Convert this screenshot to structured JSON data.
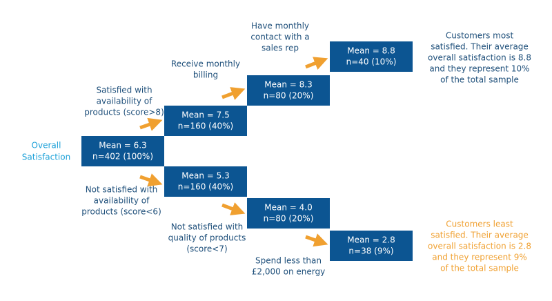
{
  "root_label": [
    "Overall",
    "Satisfaction"
  ],
  "nodes": [
    {
      "lines": [
        "Mean = 6.3",
        "n=402 (100%)"
      ]
    },
    {
      "lines": [
        "Mean = 7.5",
        "n=160 (40%)"
      ]
    },
    {
      "lines": [
        "Mean = 8.3",
        "n=80 (20%)"
      ]
    },
    {
      "lines": [
        "Mean = 8.8",
        "n=40 (10%)"
      ]
    },
    {
      "lines": [
        "Mean = 5.3",
        "n=160 (40%)"
      ]
    },
    {
      "lines": [
        "Mean = 4.0",
        "n=80 (20%)"
      ]
    },
    {
      "lines": [
        "Mean = 2.8",
        "n=38 (9%)"
      ]
    }
  ],
  "edge_labels": [
    {
      "lines": [
        "Satisfied with",
        "availability of",
        "products (score>8)"
      ]
    },
    {
      "lines": [
        "Receive monthly",
        "billing"
      ]
    },
    {
      "lines": [
        "Have monthly",
        "contact with a",
        "sales rep"
      ]
    },
    {
      "lines": [
        "Not satisfied with",
        "availability of",
        "products (score<6)"
      ]
    },
    {
      "lines": [
        "Not satisfied with",
        "quality of products",
        "(score<7)"
      ]
    },
    {
      "lines": [
        "Spend less than",
        "£2,000 on energy"
      ]
    }
  ],
  "callouts": [
    {
      "lines": [
        "Customers most",
        "satisfied. Their average",
        "overall satisfaction is 8.8",
        "and they represent 10%",
        "of the total sample"
      ]
    },
    {
      "lines": [
        "Customers least",
        "satisfied. Their average",
        "overall satisfaction is 2.8",
        "and they represent 9%",
        "of the total sample"
      ]
    }
  ]
}
